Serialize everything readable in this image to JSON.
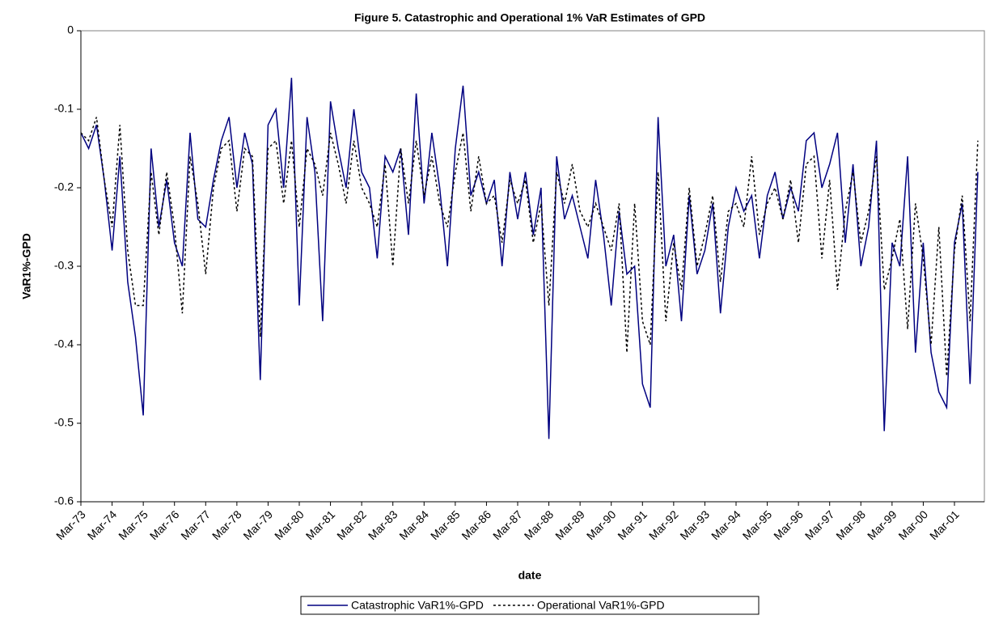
{
  "chart_data": {
    "type": "line",
    "title": "Figure 5. Catastrophic and Operational 1% VaR Estimates of GPD",
    "xlabel": "date",
    "ylabel": "VaR1%-GPD",
    "categories": [
      "Mar-73",
      null,
      null,
      null,
      "Mar-74",
      null,
      null,
      null,
      "Mar-75",
      null,
      null,
      null,
      "Mar-76",
      null,
      null,
      null,
      "Mar-77",
      null,
      null,
      null,
      "Mar-78",
      null,
      null,
      null,
      "Mar-79",
      null,
      null,
      null,
      "Mar-80",
      null,
      null,
      null,
      "Mar-81",
      null,
      null,
      null,
      "Mar-82",
      null,
      null,
      null,
      "Mar-83",
      null,
      null,
      null,
      "Mar-84",
      null,
      null,
      null,
      "Mar-85",
      null,
      null,
      null,
      "Mar-86",
      null,
      null,
      null,
      "Mar-87",
      null,
      null,
      null,
      "Mar-88",
      null,
      null,
      null,
      "Mar-89",
      null,
      null,
      null,
      "Mar-90",
      null,
      null,
      null,
      "Mar-91",
      null,
      null,
      null,
      "Mar-92",
      null,
      null,
      null,
      "Mar-93",
      null,
      null,
      null,
      "Mar-94",
      null,
      null,
      null,
      "Mar-95",
      null,
      null,
      null,
      "Mar-96",
      null,
      null,
      null,
      "Mar-97",
      null,
      null,
      null,
      "Mar-98",
      null,
      null,
      null,
      "Mar-99",
      null,
      null,
      null,
      "Mar-00",
      null,
      null,
      null,
      "Mar-01",
      null,
      null,
      null
    ],
    "series": [
      {
        "name": "Catastrophic VaR1%-GPD",
        "color": "#000080",
        "dash": "solid",
        "values": [
          -0.13,
          -0.15,
          -0.12,
          -0.19,
          -0.28,
          -0.16,
          -0.32,
          -0.39,
          -0.49,
          -0.15,
          -0.25,
          -0.19,
          -0.27,
          -0.3,
          -0.13,
          -0.24,
          -0.25,
          -0.19,
          -0.14,
          -0.11,
          -0.2,
          -0.13,
          -0.17,
          -0.445,
          -0.12,
          -0.1,
          -0.2,
          -0.06,
          -0.35,
          -0.11,
          -0.18,
          -0.37,
          -0.09,
          -0.15,
          -0.2,
          -0.1,
          -0.18,
          -0.2,
          -0.29,
          -0.16,
          -0.18,
          -0.15,
          -0.26,
          -0.08,
          -0.22,
          -0.13,
          -0.2,
          -0.3,
          -0.15,
          -0.07,
          -0.21,
          -0.18,
          -0.22,
          -0.19,
          -0.3,
          -0.18,
          -0.24,
          -0.18,
          -0.26,
          -0.2,
          -0.52,
          -0.16,
          -0.24,
          -0.21,
          -0.25,
          -0.29,
          -0.19,
          -0.26,
          -0.35,
          -0.23,
          -0.31,
          -0.3,
          -0.45,
          -0.48,
          -0.11,
          -0.3,
          -0.26,
          -0.37,
          -0.21,
          -0.31,
          -0.28,
          -0.22,
          -0.36,
          -0.25,
          -0.2,
          -0.23,
          -0.21,
          -0.29,
          -0.21,
          -0.18,
          -0.24,
          -0.2,
          -0.23,
          -0.14,
          -0.13,
          -0.2,
          -0.17,
          -0.13,
          -0.27,
          -0.17,
          -0.3,
          -0.25,
          -0.14,
          -0.51,
          -0.27,
          -0.3,
          -0.16,
          -0.41,
          -0.27,
          -0.41,
          -0.46,
          -0.48,
          -0.27,
          -0.22,
          -0.45,
          -0.18
        ]
      },
      {
        "name": "Operational VaR1%-GPD",
        "color": "#000000",
        "dash": "dotted",
        "values": [
          -0.13,
          -0.14,
          -0.11,
          -0.19,
          -0.25,
          -0.12,
          -0.28,
          -0.35,
          -0.35,
          -0.18,
          -0.26,
          -0.18,
          -0.25,
          -0.36,
          -0.16,
          -0.22,
          -0.31,
          -0.2,
          -0.15,
          -0.14,
          -0.23,
          -0.15,
          -0.16,
          -0.39,
          -0.15,
          -0.14,
          -0.22,
          -0.14,
          -0.25,
          -0.15,
          -0.17,
          -0.21,
          -0.13,
          -0.17,
          -0.22,
          -0.14,
          -0.2,
          -0.22,
          -0.25,
          -0.17,
          -0.3,
          -0.15,
          -0.22,
          -0.14,
          -0.21,
          -0.16,
          -0.22,
          -0.25,
          -0.18,
          -0.13,
          -0.23,
          -0.16,
          -0.22,
          -0.21,
          -0.27,
          -0.19,
          -0.22,
          -0.19,
          -0.27,
          -0.22,
          -0.35,
          -0.18,
          -0.22,
          -0.17,
          -0.23,
          -0.25,
          -0.22,
          -0.25,
          -0.28,
          -0.22,
          -0.41,
          -0.22,
          -0.37,
          -0.4,
          -0.18,
          -0.37,
          -0.27,
          -0.33,
          -0.2,
          -0.3,
          -0.26,
          -0.21,
          -0.32,
          -0.23,
          -0.22,
          -0.25,
          -0.16,
          -0.26,
          -0.22,
          -0.2,
          -0.24,
          -0.19,
          -0.27,
          -0.17,
          -0.16,
          -0.29,
          -0.19,
          -0.33,
          -0.23,
          -0.18,
          -0.27,
          -0.23,
          -0.16,
          -0.33,
          -0.29,
          -0.24,
          -0.38,
          -0.22,
          -0.29,
          -0.4,
          -0.25,
          -0.44,
          -0.28,
          -0.21,
          -0.37,
          -0.14
        ]
      }
    ],
    "ylim": [
      -0.6,
      0
    ],
    "yticks": [
      0,
      -0.1,
      -0.2,
      -0.3,
      -0.4,
      -0.5,
      -0.6
    ],
    "grid": false,
    "legend": "bottom"
  }
}
